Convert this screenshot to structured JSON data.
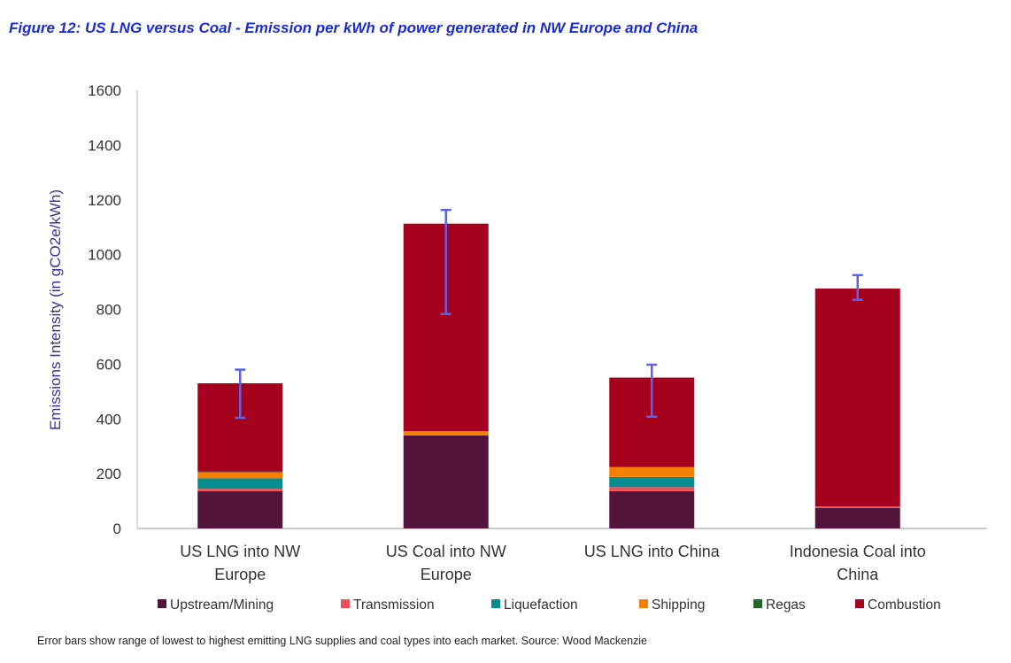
{
  "chart_data": {
    "type": "bar",
    "stacked": true,
    "title": "Figure 12: US LNG versus Coal - Emission per kWh of power generated in NW Europe and China",
    "ylabel": "Emissions Intensity (in gCO2e/kWh)",
    "xlabel": "",
    "ylim": [
      0,
      1600
    ],
    "yticks": [
      0,
      200,
      400,
      600,
      800,
      1000,
      1200,
      1400,
      1600
    ],
    "categories": [
      [
        "US LNG into NW",
        "Europe"
      ],
      [
        "US Coal into NW",
        "Europe"
      ],
      [
        "US LNG into China"
      ],
      [
        "Indonesia Coal into",
        "China"
      ]
    ],
    "series": [
      {
        "name": "Upstream/Mining",
        "color": "#53143c",
        "values": [
          136,
          340,
          136,
          75
        ]
      },
      {
        "name": "Transmission",
        "color": "#f0505a",
        "values": [
          9,
          0,
          15,
          5
        ]
      },
      {
        "name": "Liquefaction",
        "color": "#068e8e",
        "values": [
          38,
          0,
          37,
          0
        ]
      },
      {
        "name": "Shipping",
        "color": "#f38000",
        "values": [
          22,
          15,
          36,
          0
        ]
      },
      {
        "name": "Regas",
        "color": "#1f6b2a",
        "values": [
          3,
          0,
          0,
          0
        ]
      },
      {
        "name": "Combustion",
        "color": "#a6001f",
        "values": [
          322,
          758,
          327,
          796
        ]
      }
    ],
    "error_bars": [
      [
        404,
        580
      ],
      [
        783,
        1163
      ],
      [
        408,
        598
      ],
      [
        835,
        925
      ]
    ],
    "error_color": "#5b63e6",
    "legend_position": "bottom",
    "grid": false,
    "footnote": "Error bars show range of lowest to highest emitting LNG supplies and coal types into each market. Source: Wood Mackenzie"
  }
}
